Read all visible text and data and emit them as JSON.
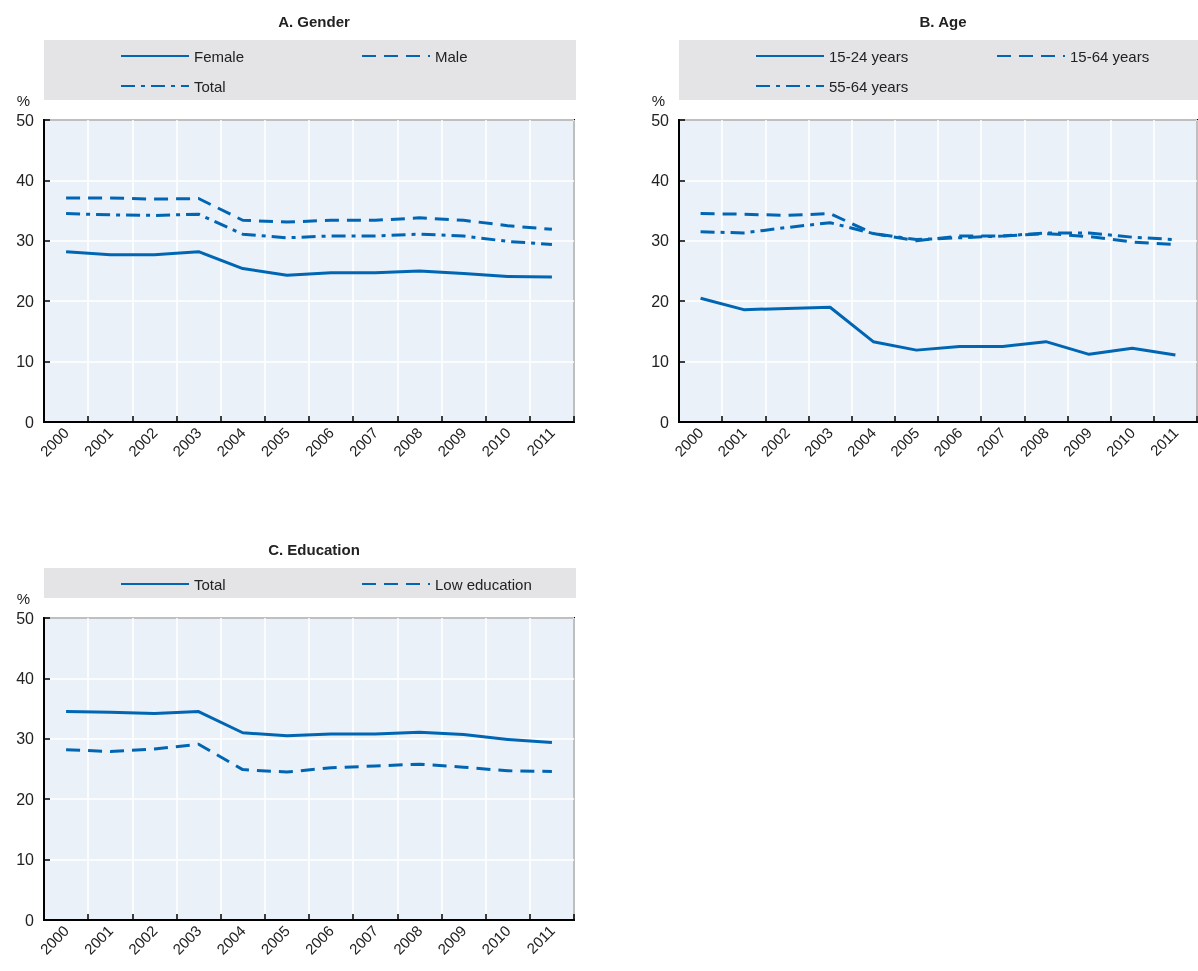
{
  "chart_data": [
    {
      "type": "line",
      "title": "A. Gender",
      "ylabel": "%",
      "categories": [
        "2000",
        "2001",
        "2002",
        "2003",
        "2004",
        "2005",
        "2006",
        "2007",
        "2008",
        "2009",
        "2010",
        "2011"
      ],
      "series": [
        {
          "name": "Female",
          "color": "#0066b3",
          "line_style": "solid",
          "values": [
            28.2,
            27.7,
            27.7,
            28.2,
            25.4,
            24.3,
            24.7,
            24.7,
            25.0,
            24.6,
            24.1,
            24.0
          ]
        },
        {
          "name": "Male",
          "color": "#0066b3",
          "line_style": "dashed",
          "values": [
            37.1,
            37.1,
            36.9,
            37.0,
            33.4,
            33.1,
            33.4,
            33.4,
            33.8,
            33.4,
            32.5,
            31.9
          ]
        },
        {
          "name": "Total",
          "color": "#0066b3",
          "line_style": "dashdot",
          "values": [
            34.5,
            34.3,
            34.2,
            34.4,
            31.1,
            30.5,
            30.8,
            30.8,
            31.1,
            30.8,
            29.9,
            29.4
          ]
        }
      ],
      "ylim": [
        0,
        50
      ],
      "yticks": [
        0,
        10,
        20,
        30,
        40,
        50
      ],
      "grid": true,
      "legend": "top"
    },
    {
      "type": "line",
      "title": "B. Age",
      "ylabel": "%",
      "categories": [
        "2000",
        "2001",
        "2002",
        "2003",
        "2004",
        "2005",
        "2006",
        "2007",
        "2008",
        "2009",
        "2010",
        "2011"
      ],
      "series": [
        {
          "name": "15-24 years",
          "color": "#0066b3",
          "line_style": "solid",
          "values": [
            20.5,
            18.6,
            18.8,
            19.0,
            13.3,
            11.9,
            12.5,
            12.5,
            13.3,
            11.2,
            12.2,
            11.1
          ]
        },
        {
          "name": "15-64 years",
          "color": "#0066b3",
          "line_style": "dashed",
          "values": [
            34.5,
            34.4,
            34.2,
            34.5,
            31.2,
            30.0,
            30.8,
            30.8,
            31.2,
            30.7,
            29.8,
            29.4
          ]
        },
        {
          "name": "55-64 years",
          "color": "#0066b3",
          "line_style": "dashdot",
          "values": [
            31.5,
            31.3,
            32.2,
            33.0,
            31.2,
            30.2,
            30.5,
            30.8,
            31.3,
            31.3,
            30.6,
            30.2
          ]
        }
      ],
      "ylim": [
        0,
        50
      ],
      "yticks": [
        0,
        10,
        20,
        30,
        40,
        50
      ],
      "grid": true,
      "legend": "top"
    },
    {
      "type": "line",
      "title": "C. Education",
      "ylabel": "%",
      "categories": [
        "2000",
        "2001",
        "2002",
        "2003",
        "2004",
        "2005",
        "2006",
        "2007",
        "2008",
        "2009",
        "2010",
        "2011"
      ],
      "series": [
        {
          "name": "Total",
          "color": "#0066b3",
          "line_style": "solid",
          "values": [
            34.5,
            34.4,
            34.2,
            34.5,
            31.0,
            30.5,
            30.8,
            30.8,
            31.1,
            30.7,
            29.9,
            29.4
          ]
        },
        {
          "name": "Low education",
          "color": "#0066b3",
          "line_style": "dashed",
          "values": [
            28.2,
            27.9,
            28.3,
            29.1,
            24.9,
            24.5,
            25.2,
            25.5,
            25.8,
            25.3,
            24.7,
            24.6
          ]
        }
      ],
      "ylim": [
        0,
        50
      ],
      "yticks": [
        0,
        10,
        20,
        30,
        40,
        50
      ],
      "grid": true,
      "legend": "top"
    }
  ]
}
